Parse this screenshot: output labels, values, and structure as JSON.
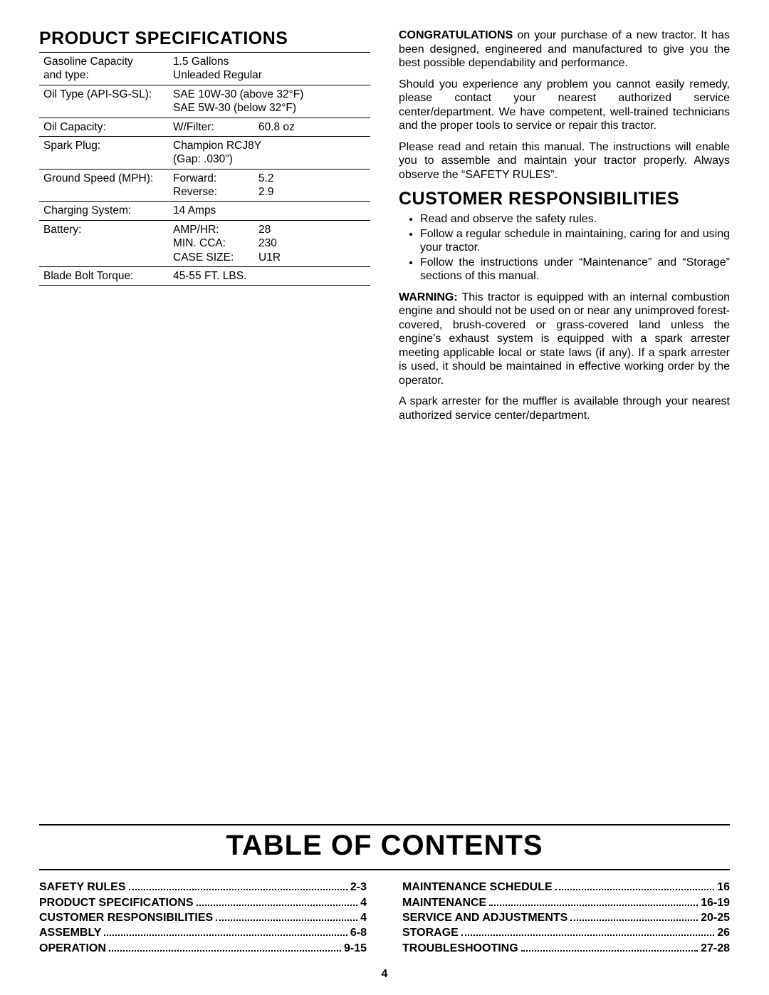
{
  "left": {
    "heading": "PRODUCT SPECIFICATIONS",
    "rows": [
      {
        "label_lines": [
          "Gasoline Capacity",
          "and type:"
        ],
        "value_lines": [
          "1.5 Gallons",
          "Unleaded Regular"
        ]
      },
      {
        "label_lines": [
          "Oil Type (API-SG-SL):"
        ],
        "value_lines": [
          "SAE 10W-30 (above 32°F)",
          "SAE 5W-30 (below 32°F)"
        ]
      },
      {
        "label_lines": [
          "Oil Capacity:"
        ],
        "kv": [
          {
            "k": "W/Filter:",
            "v": "60.8 oz"
          }
        ]
      },
      {
        "label_lines": [
          "Spark Plug:"
        ],
        "value_lines": [
          "Champion RCJ8Y",
          "(Gap:  .030\")"
        ]
      },
      {
        "label_lines": [
          "Ground Speed (MPH):"
        ],
        "kv": [
          {
            "k": "Forward:",
            "v": "5.2"
          },
          {
            "k": "Reverse:",
            "v": "2.9"
          }
        ]
      },
      {
        "label_lines": [
          "Charging System:"
        ],
        "value_lines": [
          "14 Amps"
        ]
      },
      {
        "label_lines": [
          "Battery:"
        ],
        "kv": [
          {
            "k": "AMP/HR:",
            "v": "28"
          },
          {
            "k": "MIN. CCA:",
            "v": "230"
          },
          {
            "k": "CASE SIZE:",
            "v": "U1R"
          }
        ]
      },
      {
        "label_lines": [
          "Blade Bolt Torque:"
        ],
        "value_lines": [
          "45-55 FT. LBS."
        ]
      }
    ]
  },
  "right": {
    "para1_lead": "CONGRATULATIONS",
    "para1_rest": "  on your purchase of a new tractor. It has been designed, engineered and manufactured to give you the best possible dependability and performance.",
    "para2": "Should you experience any problem you cannot easily remedy, please contact your nearest authorized service center/department.  We have competent, well-trained technicians and the proper tools to service or repair this tractor.",
    "para3": "Please read and retain this manual.  The instructions will enable you to assemble and maintain your tractor properly.  Always observe the “SAFETY RULES”.",
    "heading2": "CUSTOMER RESPONSIBILITIES",
    "bullets": [
      "Read and observe the safety rules.",
      "Follow a regular schedule in maintaining, caring for and using your tractor.",
      "Follow the instructions under “Maintenance” and “Storage” sections of this manual."
    ],
    "warn_lead": "WARNING:",
    "warn_rest": "  This tractor is equipped with an internal combustion engine and should not be used on or near any unimproved forest-covered, brush-covered or grass-covered land unless the engine’s exhaust system is equipped with a spark arrester meeting applicable local or state laws (if any).  If a spark arrester is used, it should be maintained in effective working order by the operator.",
    "para5": "A spark arrester for the muffler is available through your nearest authorized service center/department."
  },
  "toc": {
    "title": "TABLE OF CONTENTS",
    "left": [
      {
        "label": "SAFETY RULES",
        "page": "2-3"
      },
      {
        "label": "PRODUCT SPECIFICATIONS",
        "page": "4"
      },
      {
        "label": "CUSTOMER RESPONSIBILITIES",
        "page": "4"
      },
      {
        "label": "ASSEMBLY",
        "page": "6-8"
      },
      {
        "label": "OPERATION",
        "page": "9-15"
      }
    ],
    "right": [
      {
        "label": "MAINTENANCE SCHEDULE",
        "page": "16"
      },
      {
        "label": "MAINTENANCE",
        "page": "16-19"
      },
      {
        "label": "SERVICE AND ADJUSTMENTS",
        "page": "20-25"
      },
      {
        "label": "STORAGE",
        "page": "26"
      },
      {
        "label": "TROUBLESHOOTING",
        "page": "27-28"
      }
    ]
  },
  "pagenum": "4"
}
